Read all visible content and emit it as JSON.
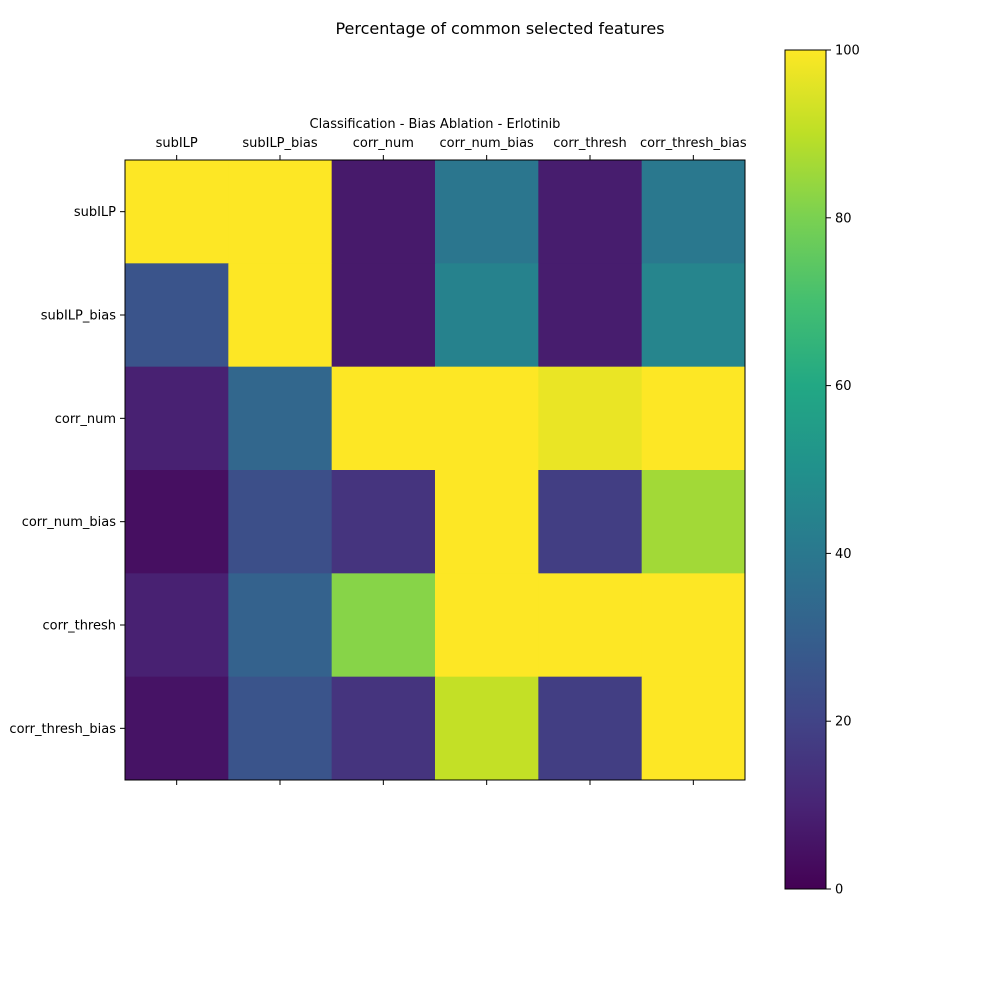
{
  "chart_data": {
    "type": "heatmap",
    "title": "Percentage of common selected features",
    "subtitle": "Classification - Bias Ablation - Erlotinib",
    "x_categories": [
      "subILP",
      "subILP_bias",
      "corr_num",
      "corr_num_bias",
      "corr_thresh",
      "corr_thresh_bias"
    ],
    "y_categories": [
      "subILP",
      "subILP_bias",
      "corr_num",
      "corr_num_bias",
      "corr_thresh",
      "corr_thresh_bias"
    ],
    "values": [
      [
        100,
        100,
        7,
        39,
        8,
        40
      ],
      [
        26,
        100,
        7,
        44,
        8,
        45
      ],
      [
        9,
        33,
        100,
        100,
        97,
        100
      ],
      [
        4,
        24,
        15,
        100,
        18,
        86
      ],
      [
        9,
        31,
        82,
        100,
        100,
        100
      ],
      [
        5,
        26,
        15,
        91,
        18,
        100
      ]
    ],
    "colorbar": {
      "min": 0,
      "max": 100,
      "ticks": [
        0,
        20,
        40,
        60,
        80,
        100
      ]
    },
    "colormap": "viridis",
    "grid": false
  }
}
